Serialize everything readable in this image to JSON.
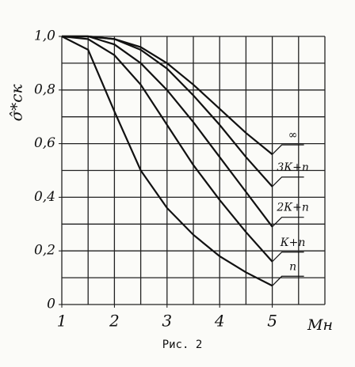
{
  "chart_data": {
    "type": "line",
    "y_label": "σ̂*ск",
    "x_label": "Mн",
    "caption": "Рис. 2",
    "x": [
      1,
      1.5,
      2,
      2.5,
      3,
      3.5,
      4,
      4.5,
      5
    ],
    "series": [
      {
        "name": "∞",
        "color": "#111111",
        "values": [
          1.0,
          1.0,
          0.99,
          0.96,
          0.9,
          0.82,
          0.73,
          0.64,
          0.56
        ]
      },
      {
        "name": "3К+п",
        "color": "#111111",
        "values": [
          1.0,
          1.0,
          0.99,
          0.95,
          0.88,
          0.78,
          0.67,
          0.55,
          0.44
        ]
      },
      {
        "name": "2К+п",
        "color": "#111111",
        "values": [
          1.0,
          1.0,
          0.97,
          0.9,
          0.8,
          0.68,
          0.55,
          0.42,
          0.29
        ]
      },
      {
        "name": "К+п",
        "color": "#111111",
        "values": [
          1.0,
          0.99,
          0.93,
          0.82,
          0.67,
          0.52,
          0.39,
          0.27,
          0.16
        ]
      },
      {
        "name": "п",
        "color": "#111111",
        "values": [
          1.0,
          0.95,
          0.72,
          0.5,
          0.36,
          0.26,
          0.18,
          0.12,
          0.07
        ]
      }
    ],
    "xlim": [
      1,
      6
    ],
    "xticks": [
      1,
      2,
      3,
      4,
      5
    ],
    "ylim": [
      0,
      1
    ],
    "yticks": [
      {
        "value": 0,
        "label": "0"
      },
      {
        "value": 0.2,
        "label": "0,2"
      },
      {
        "value": 0.4,
        "label": "0,4"
      },
      {
        "value": 0.6,
        "label": "0,6"
      },
      {
        "value": 0.8,
        "label": "0,8"
      },
      {
        "value": 1.0,
        "label": "1,0"
      }
    ],
    "grid_step_x": 0.5,
    "grid_step_y": 0.1,
    "grid": true
  }
}
